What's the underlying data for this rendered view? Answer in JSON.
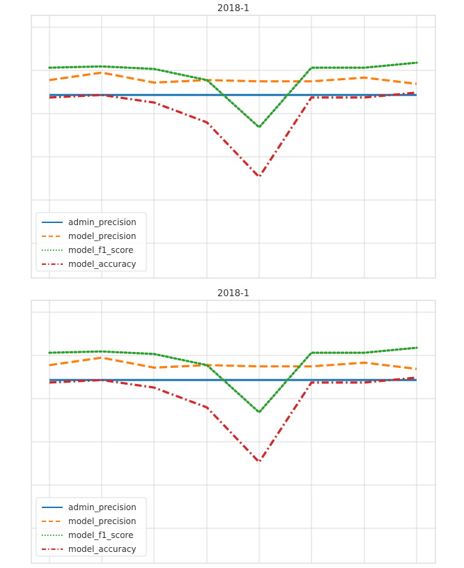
{
  "chart_data": [
    {
      "type": "line",
      "title": "2018-1",
      "x": [
        0,
        1,
        2,
        3,
        4,
        5,
        6,
        7
      ],
      "ylim": [
        0.0,
        1.0
      ],
      "grid": true,
      "legend": "lower-left",
      "series": [
        {
          "name": "admin_precision",
          "color": "#1f77b4",
          "style": "solid",
          "values": [
            0.68,
            0.68,
            0.68,
            0.68,
            0.68,
            0.68,
            0.68,
            0.68
          ]
        },
        {
          "name": "model_precision",
          "color": "#ff7f0e",
          "style": "dashed",
          "values": [
            0.74,
            0.77,
            0.73,
            0.74,
            0.735,
            0.735,
            0.75,
            0.725
          ]
        },
        {
          "name": "model_f1_score",
          "color": "#2ca02c",
          "style": "dotted",
          "values": [
            0.79,
            0.795,
            0.785,
            0.74,
            0.55,
            0.79,
            0.79,
            0.81
          ]
        },
        {
          "name": "model_accuracy",
          "color": "#d62728",
          "style": "dashdot",
          "values": [
            0.67,
            0.68,
            0.65,
            0.57,
            0.35,
            0.67,
            0.67,
            0.69
          ]
        }
      ]
    },
    {
      "type": "line",
      "title": "2018-1",
      "x": [
        0,
        1,
        2,
        3,
        4,
        5,
        6,
        7
      ],
      "ylim": [
        0.0,
        1.0
      ],
      "grid": true,
      "legend": "lower-left",
      "series": [
        {
          "name": "admin_precision",
          "color": "#1f77b4",
          "style": "solid",
          "values": [
            0.68,
            0.68,
            0.68,
            0.68,
            0.68,
            0.68,
            0.68,
            0.68
          ]
        },
        {
          "name": "model_precision",
          "color": "#ff7f0e",
          "style": "dashed",
          "values": [
            0.74,
            0.77,
            0.73,
            0.74,
            0.735,
            0.735,
            0.75,
            0.725
          ]
        },
        {
          "name": "model_f1_score",
          "color": "#2ca02c",
          "style": "dotted",
          "values": [
            0.79,
            0.795,
            0.785,
            0.74,
            0.55,
            0.79,
            0.79,
            0.81
          ]
        },
        {
          "name": "model_accuracy",
          "color": "#d62728",
          "style": "dashdot",
          "values": [
            0.67,
            0.68,
            0.65,
            0.57,
            0.35,
            0.67,
            0.67,
            0.69
          ]
        }
      ]
    }
  ]
}
